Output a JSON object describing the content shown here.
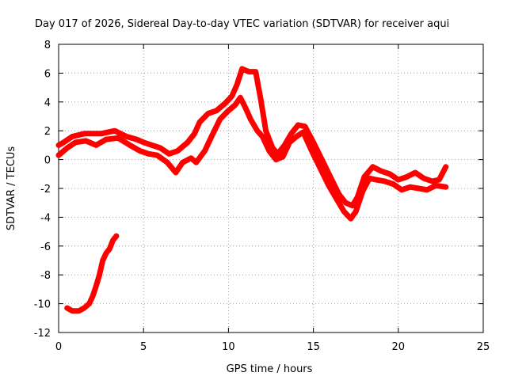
{
  "chart_data": {
    "type": "scatter",
    "title": "Day 017 of 2026, Sidereal Day-to-day VTEC variation (SDTVAR) for receiver aqui",
    "xlabel": "GPS time / hours",
    "ylabel": "SDTVAR / TECUs",
    "xlim": [
      0,
      25
    ],
    "ylim": [
      -12,
      8
    ],
    "xticks": [
      0,
      5,
      10,
      15,
      20,
      25
    ],
    "yticks": [
      -12,
      -10,
      -8,
      -6,
      -4,
      -2,
      0,
      2,
      4,
      6,
      8
    ],
    "grid": true,
    "marker": "+",
    "color": "#ff0000",
    "series": [
      {
        "name": "main-band-upper",
        "points": [
          [
            0.0,
            1.0
          ],
          [
            0.3,
            1.2
          ],
          [
            0.8,
            1.6
          ],
          [
            1.5,
            1.8
          ],
          [
            2.5,
            1.8
          ],
          [
            3.3,
            2.0
          ],
          [
            4.0,
            1.6
          ],
          [
            4.6,
            1.4
          ],
          [
            5.0,
            1.2
          ],
          [
            5.5,
            1.0
          ],
          [
            6.0,
            0.8
          ],
          [
            6.5,
            0.4
          ],
          [
            7.0,
            0.6
          ],
          [
            7.6,
            1.2
          ],
          [
            8.0,
            1.8
          ],
          [
            8.3,
            2.6
          ],
          [
            8.8,
            3.2
          ],
          [
            9.3,
            3.4
          ],
          [
            9.8,
            3.9
          ],
          [
            10.2,
            4.4
          ],
          [
            10.5,
            5.2
          ],
          [
            10.8,
            6.3
          ],
          [
            11.2,
            6.1
          ],
          [
            11.6,
            6.1
          ],
          [
            11.9,
            4.2
          ],
          [
            12.2,
            2.0
          ],
          [
            12.6,
            0.8
          ],
          [
            12.9,
            0.4
          ],
          [
            13.3,
            1.0
          ],
          [
            13.7,
            1.8
          ],
          [
            14.1,
            2.4
          ],
          [
            14.5,
            2.3
          ],
          [
            15.0,
            1.2
          ],
          [
            15.5,
            0.0
          ],
          [
            16.0,
            -1.2
          ],
          [
            16.5,
            -2.4
          ],
          [
            16.9,
            -3.0
          ],
          [
            17.3,
            -3.2
          ],
          [
            17.6,
            -2.6
          ],
          [
            18.0,
            -1.2
          ],
          [
            18.5,
            -0.5
          ],
          [
            19.0,
            -0.8
          ],
          [
            19.5,
            -1.0
          ],
          [
            20.0,
            -1.4
          ],
          [
            20.5,
            -1.2
          ],
          [
            21.0,
            -0.9
          ],
          [
            21.5,
            -1.3
          ],
          [
            22.0,
            -1.5
          ],
          [
            22.4,
            -1.4
          ],
          [
            22.8,
            -0.5
          ]
        ]
      },
      {
        "name": "main-band-lower",
        "points": [
          [
            0.0,
            0.3
          ],
          [
            0.5,
            0.8
          ],
          [
            1.0,
            1.2
          ],
          [
            1.6,
            1.3
          ],
          [
            2.2,
            1.0
          ],
          [
            2.8,
            1.4
          ],
          [
            3.5,
            1.5
          ],
          [
            4.2,
            1.0
          ],
          [
            4.8,
            0.6
          ],
          [
            5.3,
            0.4
          ],
          [
            5.8,
            0.3
          ],
          [
            6.4,
            -0.2
          ],
          [
            6.9,
            -0.9
          ],
          [
            7.3,
            -0.2
          ],
          [
            7.8,
            0.1
          ],
          [
            8.1,
            -0.2
          ],
          [
            8.6,
            0.6
          ],
          [
            9.0,
            1.6
          ],
          [
            9.5,
            2.8
          ],
          [
            10.0,
            3.4
          ],
          [
            10.4,
            3.8
          ],
          [
            10.7,
            4.3
          ],
          [
            11.0,
            3.6
          ],
          [
            11.3,
            2.8
          ],
          [
            11.7,
            2.0
          ],
          [
            12.0,
            1.6
          ],
          [
            12.4,
            0.6
          ],
          [
            12.8,
            0.0
          ],
          [
            13.2,
            0.2
          ],
          [
            13.6,
            1.2
          ],
          [
            14.0,
            1.6
          ],
          [
            14.4,
            1.9
          ],
          [
            14.9,
            0.6
          ],
          [
            15.4,
            -0.6
          ],
          [
            15.9,
            -1.8
          ],
          [
            16.4,
            -2.8
          ],
          [
            16.8,
            -3.6
          ],
          [
            17.2,
            -4.1
          ],
          [
            17.5,
            -3.6
          ],
          [
            17.9,
            -2.2
          ],
          [
            18.3,
            -1.3
          ],
          [
            18.7,
            -1.4
          ],
          [
            19.2,
            -1.5
          ],
          [
            19.7,
            -1.7
          ],
          [
            20.2,
            -2.1
          ],
          [
            20.7,
            -1.9
          ],
          [
            21.2,
            -2.0
          ],
          [
            21.7,
            -2.1
          ],
          [
            22.2,
            -1.8
          ],
          [
            22.8,
            -1.9
          ]
        ]
      },
      {
        "name": "low-arc",
        "points": [
          [
            0.5,
            -10.3
          ],
          [
            0.8,
            -10.5
          ],
          [
            1.2,
            -10.5
          ],
          [
            1.5,
            -10.3
          ],
          [
            1.8,
            -10.0
          ],
          [
            2.0,
            -9.5
          ],
          [
            2.2,
            -8.8
          ],
          [
            2.4,
            -8.0
          ],
          [
            2.6,
            -7.0
          ],
          [
            2.8,
            -6.5
          ],
          [
            3.0,
            -6.2
          ],
          [
            3.2,
            -5.6
          ],
          [
            3.4,
            -5.3
          ]
        ]
      }
    ]
  }
}
